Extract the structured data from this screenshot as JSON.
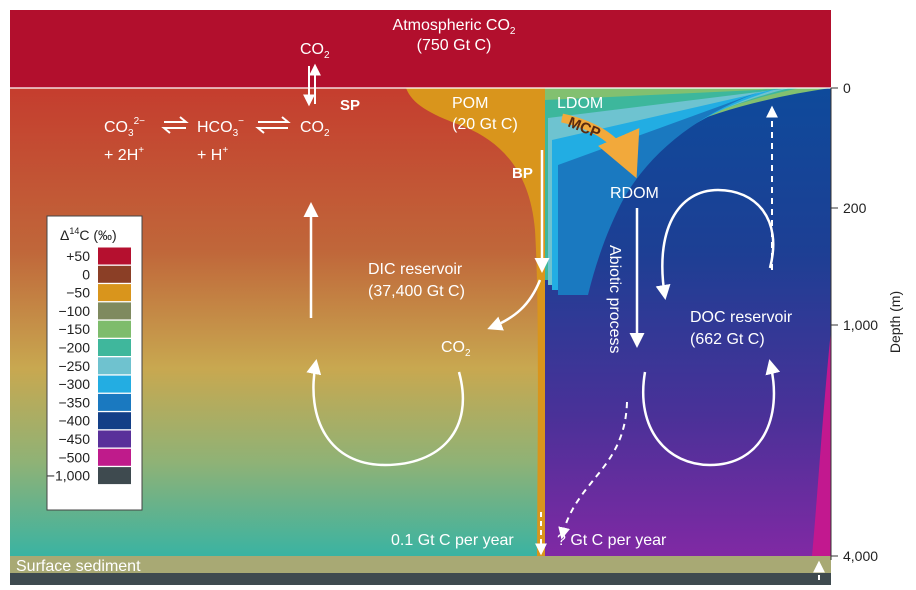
{
  "atmosphere": {
    "title": "Atmospheric CO",
    "title_sub": "2",
    "amount": "(750 Gt C)"
  },
  "left": {
    "co2_top": "CO",
    "co2_top_sub": "2",
    "sp": "SP",
    "eq_carbonate": "CO",
    "eq_carbonate_sub": "3",
    "eq_carbonate_sup": "2−",
    "eq_bicarbonate": "HCO",
    "eq_bicarbonate_sub": "3",
    "eq_bicarbonate_sup": "−",
    "eq_co2": "CO",
    "eq_co2_sub": "2",
    "plus_2h": "+ 2H",
    "plus_2h_sup": "+",
    "plus_h": "+ H",
    "plus_h_sup": "+",
    "dic_title": "DIC reservoir",
    "dic_amount": "(37,400 Gt C)",
    "co2_mid": "CO",
    "co2_mid_sub": "2",
    "flux_left": "0.1 Gt C per year"
  },
  "middle": {
    "pom": "POM",
    "pom_amount": "(20 Gt C)",
    "bp": "BP"
  },
  "right": {
    "ldom": "LDOM",
    "mcp": "MCP",
    "rdom": "RDOM",
    "abiotic": "Abiotic process",
    "doc_title": "DOC reservoir",
    "doc_amount": "(662 Gt C)",
    "flux_right": "? Gt C per year"
  },
  "sediment": "Surface sediment",
  "depth_axis": {
    "label": "Depth (m)",
    "ticks": [
      "0",
      "200",
      "1,000",
      "4,000"
    ]
  },
  "legend": {
    "title": "Δ",
    "title_sup": "14",
    "title_rest": "C (‰)",
    "items": [
      {
        "label": "+50",
        "color": "#b5102f"
      },
      {
        "label": "0",
        "color": "#8b3f26"
      },
      {
        "label": "−50",
        "color": "#d9951c"
      },
      {
        "label": "−100",
        "color": "#7f8a5f"
      },
      {
        "label": "−150",
        "color": "#7ebc6c"
      },
      {
        "label": "−200",
        "color": "#3fb79c"
      },
      {
        "label": "−250",
        "color": "#6fc2cf"
      },
      {
        "label": "−300",
        "color": "#23ade2"
      },
      {
        "label": "−350",
        "color": "#1a79c0"
      },
      {
        "label": "−400",
        "color": "#133f87"
      },
      {
        "label": "−450",
        "color": "#59309a"
      },
      {
        "label": "−500",
        "color": "#bf1b8b"
      },
      {
        "label": "−1,000",
        "color": "#3e4a4f"
      }
    ]
  }
}
